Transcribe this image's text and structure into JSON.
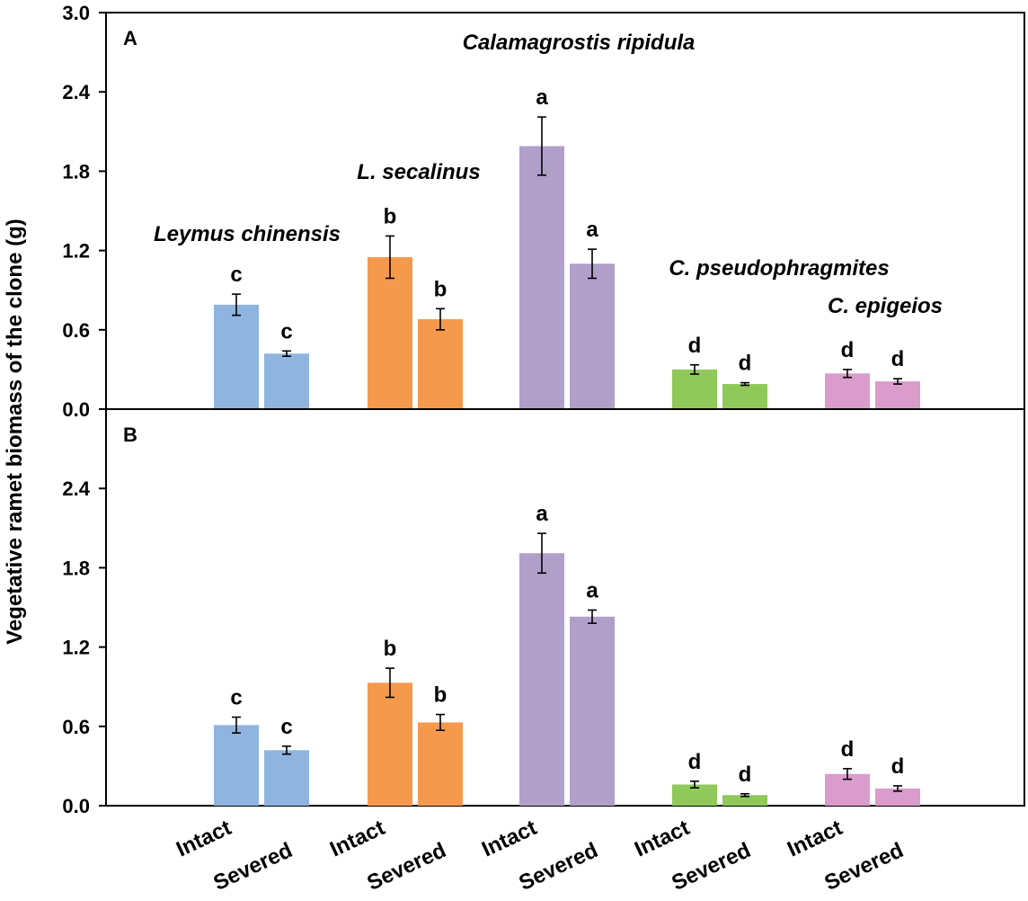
{
  "chart_data": {
    "type": "bar",
    "ylabel": "Vegetative ramet biomass of the clone (g)",
    "x_tick_labels": [
      "Intact",
      "Severed",
      "Intact",
      "Severed",
      "Intact",
      "Severed",
      "Intact",
      "Severed",
      "Intact",
      "Severed"
    ],
    "categories": [
      "Intact",
      "Severed"
    ],
    "series_colors": {
      "Leymus chinensis": "#8fb4e0",
      "L. secalinus": "#f5994d",
      "Calamagrostis ripidula": "#b09fc9",
      "C. pseudophragmites": "#8ec95a",
      "C. epigeios": "#d99ccb"
    },
    "panels": [
      {
        "label": "A",
        "ylim": [
          0,
          3.0
        ],
        "y_ticks": [
          "0.0",
          "0.6",
          "1.2",
          "1.8",
          "2.4",
          "3.0"
        ],
        "series": [
          {
            "name": "Leymus chinensis",
            "label": "Leymus chinensis",
            "values": [
              0.79,
              0.42
            ],
            "errors": [
              0.08,
              0.02
            ],
            "letters": [
              "c",
              "c"
            ]
          },
          {
            "name": "L. secalinus",
            "label": "L. secalinus",
            "values": [
              1.15,
              0.68
            ],
            "errors": [
              0.16,
              0.08
            ],
            "letters": [
              "b",
              "b"
            ]
          },
          {
            "name": "Calamagrostis ripidula",
            "label": "Calamagrostis ripidula",
            "values": [
              1.99,
              1.1
            ],
            "errors": [
              0.22,
              0.11
            ],
            "letters": [
              "a",
              "a"
            ]
          },
          {
            "name": "C. pseudophragmites",
            "label": "C. pseudophragmites",
            "values": [
              0.3,
              0.19
            ],
            "errors": [
              0.035,
              0.01
            ],
            "letters": [
              "d",
              "d"
            ]
          },
          {
            "name": "C. epigeios",
            "label": "C. epigeios",
            "values": [
              0.27,
              0.21
            ],
            "errors": [
              0.03,
              0.02
            ],
            "letters": [
              "d",
              "d"
            ]
          }
        ]
      },
      {
        "label": "B",
        "ylim": [
          0,
          3.0
        ],
        "y_ticks": [
          "0.0",
          "0.6",
          "1.2",
          "1.8",
          "2.4"
        ],
        "series": [
          {
            "name": "Leymus chinensis",
            "values": [
              0.61,
              0.42
            ],
            "errors": [
              0.06,
              0.03
            ],
            "letters": [
              "c",
              "c"
            ]
          },
          {
            "name": "L. secalinus",
            "values": [
              0.93,
              0.63
            ],
            "errors": [
              0.11,
              0.06
            ],
            "letters": [
              "b",
              "b"
            ]
          },
          {
            "name": "Calamagrostis ripidula",
            "values": [
              1.91,
              1.43
            ],
            "errors": [
              0.15,
              0.05
            ],
            "letters": [
              "a",
              "a"
            ]
          },
          {
            "name": "C. pseudophragmites",
            "values": [
              0.16,
              0.08
            ],
            "errors": [
              0.025,
              0.01
            ],
            "letters": [
              "d",
              "d"
            ]
          },
          {
            "name": "C. epigeios",
            "values": [
              0.24,
              0.13
            ],
            "errors": [
              0.04,
              0.02
            ],
            "letters": [
              "d",
              "d"
            ]
          }
        ]
      }
    ]
  }
}
